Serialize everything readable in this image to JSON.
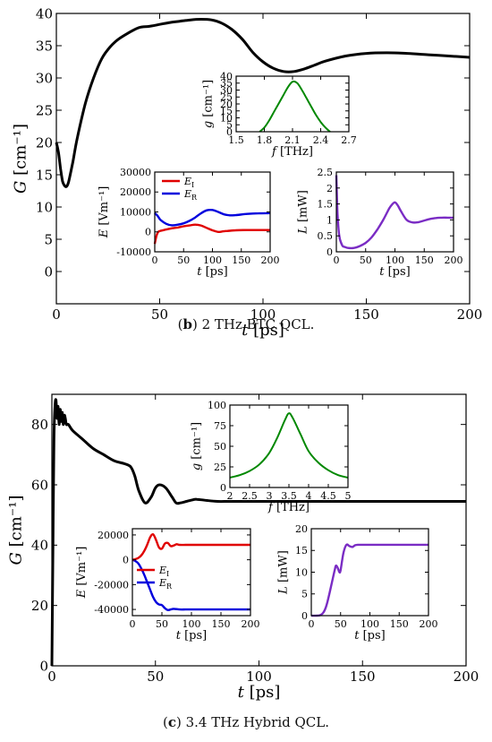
{
  "captions": [
    {
      "label": "b",
      "text": "2 THz BTC QCL."
    },
    {
      "label": "c",
      "text": "3.4 THz Hybrid QCL."
    }
  ],
  "chart_data": [
    {
      "id": "b-main",
      "type": "line",
      "xlabel": "t",
      "xunit": "[ps]",
      "ylabel": "G",
      "yunit": "[cm⁻¹]",
      "xlim": [
        0,
        200
      ],
      "ylim": [
        -5,
        40
      ],
      "xticks": [
        "0",
        "50",
        "100",
        "150",
        "200"
      ],
      "yticks": [
        "0",
        "5",
        "10",
        "15",
        "20",
        "25",
        "30",
        "35",
        "40"
      ],
      "series": [
        {
          "color": "#000000",
          "x": [
            0,
            1,
            2,
            3,
            4,
            5,
            6,
            8,
            10,
            14,
            18,
            22,
            26,
            30,
            35,
            40,
            45,
            50,
            55,
            60,
            65,
            70,
            75,
            80,
            85,
            90,
            95,
            100,
            105,
            110,
            115,
            120,
            125,
            130,
            140,
            150,
            160,
            170,
            180,
            190,
            200
          ],
          "y": [
            20,
            18.5,
            16,
            14,
            13.3,
            13.2,
            14,
            17,
            20.5,
            26,
            30,
            33,
            34.8,
            36,
            37,
            37.8,
            38,
            38.3,
            38.6,
            38.8,
            39,
            39.1,
            39,
            38.5,
            37.5,
            36,
            34,
            32.5,
            31.5,
            31,
            31,
            31.4,
            32,
            32.6,
            33.4,
            33.8,
            33.9,
            33.8,
            33.6,
            33.4,
            33.2
          ]
        }
      ]
    },
    {
      "id": "b-inset-g",
      "type": "line",
      "xlabel": "f",
      "xunit": "[THz]",
      "ylabel": "g",
      "yunit": "[cm⁻¹]",
      "xlim": [
        1.5,
        2.7
      ],
      "ylim": [
        0,
        40
      ],
      "xticks": [
        "1.5",
        "1.8",
        "2.1",
        "2.4",
        "2.7"
      ],
      "yticks": [
        "0",
        "5",
        "10",
        "15",
        "20",
        "25",
        "30",
        "35",
        "40"
      ],
      "series": [
        {
          "color": "#008800",
          "x": [
            1.75,
            1.8,
            1.85,
            1.9,
            1.95,
            2.0,
            2.05,
            2.1,
            2.15,
            2.2,
            2.25,
            2.3,
            2.35,
            2.4,
            2.45,
            2.5
          ],
          "y": [
            0,
            3,
            8,
            14,
            20,
            26,
            32,
            36,
            35,
            30,
            24,
            18,
            12,
            7,
            3,
            0
          ]
        }
      ]
    },
    {
      "id": "b-inset-E",
      "type": "line",
      "xlabel": "t",
      "xunit": "[ps]",
      "ylabel": "E",
      "yunit": "[Vm⁻¹]",
      "xlim": [
        0,
        200
      ],
      "ylim": [
        -10000,
        30000
      ],
      "xticks": [
        "0",
        "50",
        "100",
        "150",
        "200"
      ],
      "yticks": [
        "-10000",
        "0",
        "10000",
        "20000",
        "30000"
      ],
      "legend": [
        "E",
        "E"
      ],
      "legend_sub": [
        "I",
        "R"
      ],
      "series": [
        {
          "name": "E",
          "color": "#e00000",
          "x": [
            0,
            3,
            6,
            10,
            20,
            30,
            40,
            50,
            60,
            70,
            80,
            90,
            100,
            110,
            120,
            140,
            160,
            180,
            200
          ],
          "y": [
            -6000,
            -2000,
            0,
            500,
            1200,
            1800,
            2200,
            2800,
            3200,
            3600,
            3200,
            2000,
            800,
            0,
            300,
            800,
            900,
            900,
            900
          ]
        },
        {
          "name": "E",
          "color": "#0000dd",
          "x": [
            0,
            5,
            10,
            20,
            30,
            40,
            50,
            60,
            70,
            80,
            90,
            100,
            110,
            120,
            130,
            140,
            160,
            180,
            200
          ],
          "y": [
            9500,
            8000,
            6000,
            4000,
            3300,
            3600,
            4300,
            5500,
            7200,
            9300,
            10800,
            11000,
            10000,
            8800,
            8300,
            8400,
            9000,
            9300,
            9400
          ]
        }
      ]
    },
    {
      "id": "b-inset-L",
      "type": "line",
      "xlabel": "t",
      "xunit": "[ps]",
      "ylabel": "L",
      "yunit": "[mW]",
      "xlim": [
        0,
        200
      ],
      "ylim": [
        0,
        2.5
      ],
      "xticks": [
        "0",
        "50",
        "100",
        "150",
        "200"
      ],
      "yticks": [
        "0",
        "0.5",
        "1",
        "1.5",
        "2",
        "2.5"
      ],
      "series": [
        {
          "color": "#7a2cc4",
          "x": [
            0,
            2,
            5,
            10,
            15,
            20,
            30,
            40,
            50,
            60,
            70,
            80,
            90,
            95,
            100,
            105,
            110,
            120,
            130,
            140,
            150,
            160,
            170,
            180,
            190,
            200
          ],
          "y": [
            2.4,
            1.2,
            0.5,
            0.2,
            0.15,
            0.12,
            0.12,
            0.18,
            0.28,
            0.45,
            0.7,
            1.0,
            1.35,
            1.48,
            1.55,
            1.45,
            1.28,
            1.0,
            0.92,
            0.93,
            0.98,
            1.03,
            1.06,
            1.07,
            1.07,
            1.07
          ]
        }
      ]
    },
    {
      "id": "c-main",
      "type": "line",
      "xlabel": "t",
      "xunit": "[ps]",
      "ylabel": "G",
      "yunit": "[cm⁻¹]",
      "xlim": [
        0,
        200
      ],
      "ylim": [
        0,
        90
      ],
      "xticks": [
        "0",
        "50",
        "100",
        "150",
        "200"
      ],
      "yticks": [
        "0",
        "20",
        "40",
        "60",
        "80"
      ],
      "series": [
        {
          "color": "#000000",
          "x": [
            0,
            0.5,
            1,
            1.5,
            2,
            2.5,
            3,
            3.5,
            4,
            4.5,
            5,
            5.5,
            6,
            6.5,
            7,
            8,
            10,
            15,
            20,
            25,
            30,
            35,
            38,
            40,
            42,
            45,
            48,
            50,
            52,
            55,
            58,
            60,
            62,
            65,
            68,
            70,
            75,
            80,
            85,
            90,
            100,
            120,
            150,
            200
          ],
          "y": [
            0,
            40,
            75,
            86,
            88,
            82,
            86,
            80,
            85,
            81,
            84,
            80,
            83,
            82,
            80,
            80,
            78,
            75,
            72,
            70,
            68,
            67,
            66,
            63,
            58,
            54,
            56,
            59,
            60,
            59,
            56,
            54,
            54,
            54.5,
            55,
            55.2,
            54.8,
            54.5,
            54.5,
            54.5,
            54.5,
            54.5,
            54.5,
            54.5
          ]
        }
      ]
    },
    {
      "id": "c-inset-g",
      "type": "line",
      "xlabel": "f",
      "xunit": "[THz]",
      "ylabel": "g",
      "yunit": "[cm⁻¹]",
      "xlim": [
        2,
        5
      ],
      "ylim": [
        0,
        100
      ],
      "xticks": [
        "2",
        "2.5",
        "3",
        "3.5",
        "4",
        "4.5",
        "5"
      ],
      "yticks": [
        "0",
        "25",
        "50",
        "75",
        "100"
      ],
      "series": [
        {
          "color": "#008800",
          "x": [
            2,
            2.25,
            2.5,
            2.75,
            3,
            3.2,
            3.4,
            3.5,
            3.6,
            3.8,
            4,
            4.25,
            4.5,
            4.75,
            5
          ],
          "y": [
            12,
            15,
            20,
            28,
            42,
            60,
            82,
            90,
            84,
            64,
            44,
            30,
            21,
            15,
            12
          ]
        }
      ]
    },
    {
      "id": "c-inset-E",
      "type": "line",
      "xlabel": "t",
      "xunit": "[ps]",
      "ylabel": "E",
      "yunit": "[Vm⁻¹]",
      "xlim": [
        0,
        200
      ],
      "ylim": [
        -45000,
        25000
      ],
      "xticks": [
        "0",
        "50",
        "100",
        "150",
        "200"
      ],
      "yticks": [
        "-40000",
        "-20000",
        "0",
        "20000"
      ],
      "legend": [
        "E",
        "E"
      ],
      "legend_sub": [
        "R",
        "I"
      ],
      "series": [
        {
          "name": "E",
          "color": "#0000dd",
          "x": [
            0,
            5,
            10,
            15,
            20,
            25,
            30,
            35,
            40,
            45,
            50,
            55,
            60,
            65,
            70,
            80,
            90,
            100,
            120,
            150,
            200
          ],
          "y": [
            0,
            -1000,
            -3000,
            -7000,
            -12000,
            -18000,
            -24000,
            -30000,
            -34000,
            -36000,
            -36500,
            -39000,
            -40500,
            -40000,
            -39500,
            -40000,
            -40000,
            -40000,
            -40000,
            -40000,
            -40000
          ]
        },
        {
          "name": "E",
          "color": "#e00000",
          "x": [
            0,
            5,
            10,
            15,
            20,
            25,
            30,
            35,
            40,
            45,
            50,
            55,
            60,
            65,
            70,
            75,
            80,
            90,
            100,
            120,
            150,
            200
          ],
          "y": [
            0,
            500,
            1500,
            3500,
            7000,
            12000,
            18000,
            20500,
            16000,
            10000,
            9000,
            13000,
            13500,
            11000,
            11500,
            12500,
            12000,
            12000,
            12000,
            12000,
            12000,
            12000
          ]
        }
      ]
    },
    {
      "id": "c-inset-L",
      "type": "line",
      "xlabel": "t",
      "xunit": "[ps]",
      "ylabel": "L",
      "yunit": "[mW]",
      "xlim": [
        0,
        200
      ],
      "ylim": [
        0,
        20
      ],
      "xticks": [
        "0",
        "50",
        "100",
        "150",
        "200"
      ],
      "yticks": [
        "0",
        "5",
        "10",
        "15",
        "20"
      ],
      "series": [
        {
          "color": "#7a2cc4",
          "x": [
            0,
            10,
            15,
            20,
            25,
            30,
            35,
            40,
            42,
            45,
            48,
            50,
            55,
            60,
            65,
            70,
            75,
            80,
            90,
            100,
            150,
            200
          ],
          "y": [
            0,
            0,
            0.1,
            0.6,
            2,
            4.5,
            7.5,
            10.5,
            11.5,
            11,
            10,
            10.5,
            14.5,
            16.3,
            16,
            15.8,
            16.2,
            16.3,
            16.3,
            16.3,
            16.3,
            16.3
          ]
        }
      ]
    }
  ]
}
